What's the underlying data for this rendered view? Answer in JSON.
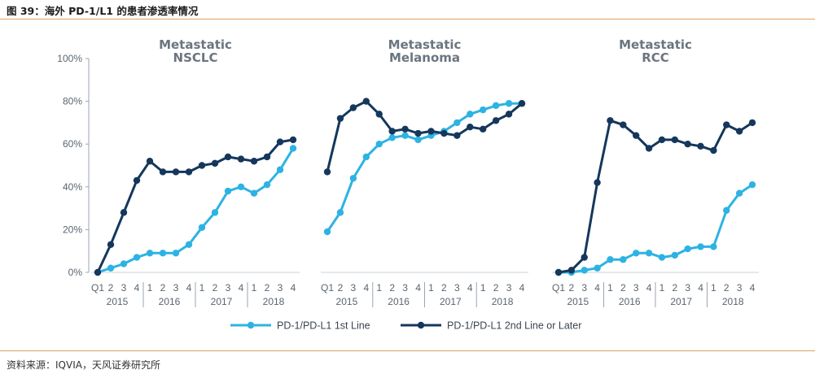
{
  "header": {
    "figure_title": "图 39：海外 PD-1/L1 的患者渗透率情况"
  },
  "footer": {
    "source": "资料来源：IQVIA，天风证券研究所"
  },
  "colors": {
    "first_line": "#2db3e3",
    "second_line": "#15375c",
    "axis": "#9aa5b0",
    "title": "#6b7580"
  },
  "chart_data": [
    {
      "type": "line",
      "title_lines": [
        "Metastatic",
        "NSCLC"
      ],
      "categories": [
        "Q1",
        "2",
        "3",
        "4",
        "1",
        "2",
        "3",
        "4",
        "1",
        "2",
        "3",
        "4",
        "1",
        "2",
        "3",
        "4"
      ],
      "years": [
        "2015",
        "2016",
        "2017",
        "2018"
      ],
      "ylim": [
        0,
        100
      ],
      "yticks": [
        "0%",
        "20%",
        "40%",
        "60%",
        "80%",
        "100%"
      ],
      "series": [
        {
          "name": "PD-1/PD-L1 1st Line",
          "values": [
            0,
            2,
            4,
            7,
            9,
            9,
            9,
            13,
            21,
            28,
            38,
            40,
            37,
            41,
            48,
            58
          ]
        },
        {
          "name": "PD-1/PD-L1 2nd Line or Later",
          "values": [
            0,
            13,
            28,
            43,
            52,
            47,
            47,
            47,
            50,
            51,
            54,
            53,
            52,
            54,
            61,
            62
          ]
        }
      ]
    },
    {
      "type": "line",
      "title_lines": [
        "Metastatic",
        "Melanoma"
      ],
      "categories": [
        "Q1",
        "2",
        "3",
        "4",
        "1",
        "2",
        "3",
        "4",
        "1",
        "2",
        "3",
        "4",
        "1",
        "2",
        "3",
        "4"
      ],
      "years": [
        "2015",
        "2016",
        "2017",
        "2018"
      ],
      "ylim": [
        0,
        100
      ],
      "series": [
        {
          "name": "PD-1/PD-L1 1st Line",
          "values": [
            19,
            28,
            44,
            54,
            60,
            63,
            64,
            62,
            64,
            66,
            70,
            74,
            76,
            78,
            79,
            79
          ]
        },
        {
          "name": "PD-1/PD-L1 2nd Line or Later",
          "values": [
            47,
            72,
            77,
            80,
            74,
            66,
            67,
            65,
            66,
            65,
            64,
            68,
            67,
            71,
            74,
            79
          ]
        }
      ]
    },
    {
      "type": "line",
      "title_lines": [
        "Metastatic",
        "RCC"
      ],
      "categories": [
        "Q1",
        "2",
        "3",
        "4",
        "1",
        "2",
        "3",
        "4",
        "1",
        "2",
        "3",
        "4",
        "1",
        "2",
        "3",
        "4"
      ],
      "years": [
        "2015",
        "2016",
        "2017",
        "2018"
      ],
      "ylim": [
        0,
        100
      ],
      "series": [
        {
          "name": "PD-1/PD-L1 1st Line",
          "values": [
            0,
            0,
            1,
            2,
            6,
            6,
            9,
            9,
            7,
            8,
            11,
            12,
            12,
            29,
            37,
            41
          ]
        },
        {
          "name": "PD-1/PD-L1 2nd Line or Later",
          "values": [
            0,
            1,
            7,
            42,
            71,
            69,
            64,
            58,
            62,
            62,
            60,
            59,
            57,
            69,
            66,
            70
          ]
        }
      ]
    }
  ],
  "legend": [
    {
      "label": "PD-1/PD-L1 1st Line",
      "color": "#2db3e3"
    },
    {
      "label": "PD-1/PD-L1 2nd Line or Later",
      "color": "#15375c"
    }
  ]
}
